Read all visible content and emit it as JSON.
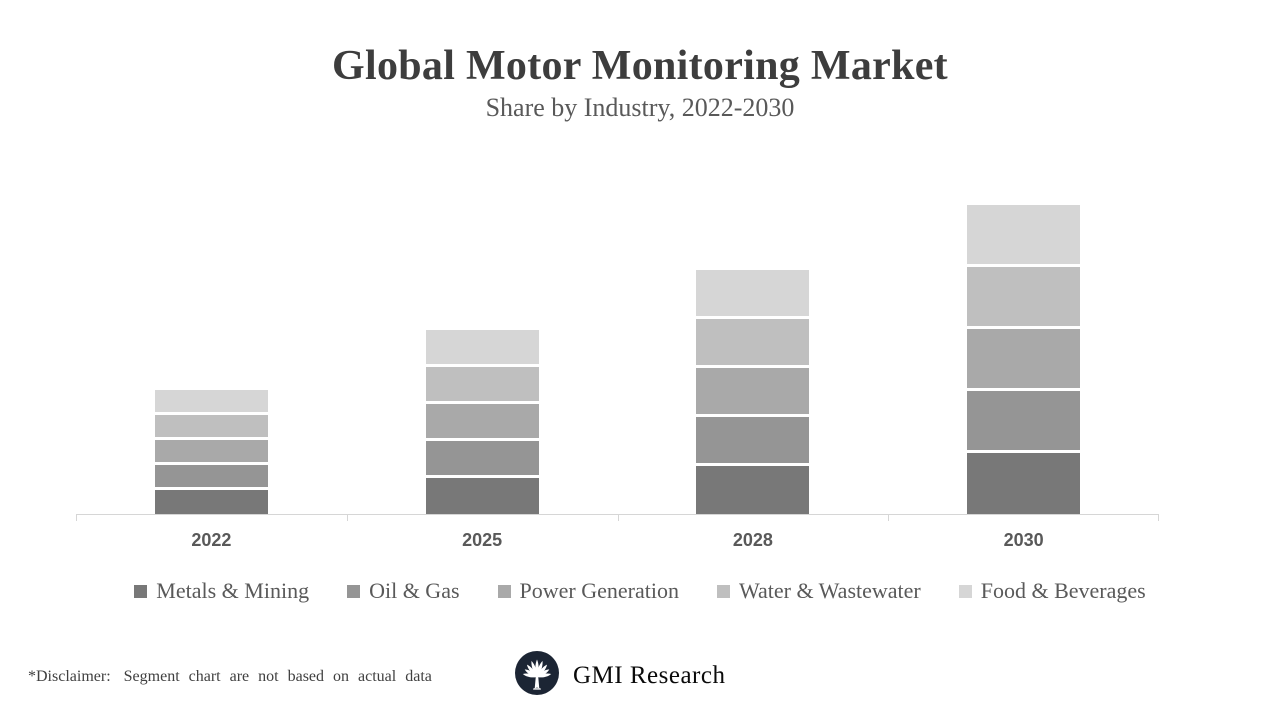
{
  "chart_data": {
    "type": "bar",
    "stacked": true,
    "title": "Global Motor Monitoring Market",
    "subtitle": "Share by Industry, 2022-2030",
    "xlabel": "",
    "ylabel": "",
    "categories": [
      "2022",
      "2025",
      "2028",
      "2030"
    ],
    "series": [
      {
        "name": "Metals & Mining",
        "color": "#787878",
        "values": [
          25,
          37,
          49,
          62
        ]
      },
      {
        "name": "Oil & Gas",
        "color": "#959595",
        "values": [
          25,
          37,
          49,
          62
        ]
      },
      {
        "name": "Power Generation",
        "color": "#a9a9a9",
        "values": [
          25,
          37,
          49,
          62
        ]
      },
      {
        "name": "Water & Wastewater",
        "color": "#bfbfbf",
        "values": [
          25,
          37,
          49,
          62
        ]
      },
      {
        "name": "Food & Beverages",
        "color": "#d6d6d6",
        "values": [
          25,
          37,
          49,
          62
        ]
      }
    ],
    "ylim": [
      0,
      325
    ],
    "grid": false,
    "legend_position": "bottom",
    "axis_color": "#d6d6d6",
    "tick_label_color": "#595959"
  },
  "footer": {
    "disclaimer_label": "*Disclaimer:",
    "disclaimer_text": "Segment chart are not based on actual data",
    "brand": "GMI Research",
    "logo_color": "#1c2534"
  }
}
